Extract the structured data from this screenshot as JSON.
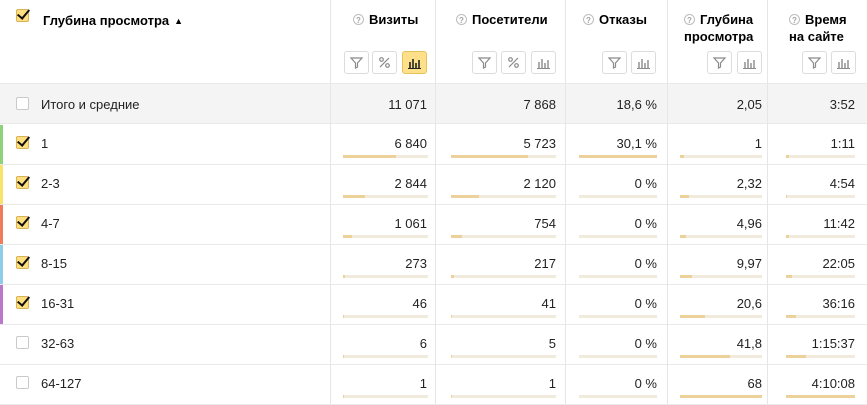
{
  "table": {
    "first_col_title": "Глубина просмотра",
    "sort_arrow": "▲",
    "columns": [
      {
        "key": "visits",
        "title_lines": [
          "Визиты"
        ]
      },
      {
        "key": "visitors",
        "title_lines": [
          "Посетители"
        ]
      },
      {
        "key": "bounces",
        "title_lines": [
          "Отказы"
        ]
      },
      {
        "key": "depth",
        "title_lines": [
          "Глубина",
          "просмотра"
        ]
      },
      {
        "key": "time",
        "title_lines": [
          "Время",
          "на сайте"
        ]
      }
    ],
    "total": {
      "label": "Итого и средние",
      "values": [
        "11 071",
        "7 868",
        "18,6 %",
        "2,05",
        "3:52"
      ]
    },
    "rows": [
      {
        "label": "1",
        "checked": true,
        "color": "#8fd27a",
        "values": [
          "6 840",
          "5 723",
          "30,1 %",
          "1",
          "1:11"
        ],
        "fill": [
          0.62,
          0.73,
          1.0,
          0.05,
          0.05
        ]
      },
      {
        "label": "2-3",
        "checked": true,
        "color": "#f7e36a",
        "values": [
          "2 844",
          "2 120",
          "0 %",
          "2,32",
          "4:54"
        ],
        "fill": [
          0.26,
          0.27,
          0,
          0.11,
          0.02
        ]
      },
      {
        "label": "4-7",
        "checked": true,
        "color": "#f07a5a",
        "values": [
          "1 061",
          "754",
          "0 %",
          "4,96",
          "11:42"
        ],
        "fill": [
          0.1,
          0.1,
          0,
          0.07,
          0.05
        ]
      },
      {
        "label": "8-15",
        "checked": true,
        "color": "#8ecde8",
        "values": [
          "273",
          "217",
          "0 %",
          "9,97",
          "22:05"
        ],
        "fill": [
          0.02,
          0.03,
          0,
          0.15,
          0.09
        ]
      },
      {
        "label": "16-31",
        "checked": true,
        "color": "#b978c9",
        "values": [
          "46",
          "41",
          "0 %",
          "20,6",
          "36:16"
        ],
        "fill": [
          0.004,
          0.005,
          0,
          0.3,
          0.14
        ]
      },
      {
        "label": "32-63",
        "checked": false,
        "color": "",
        "values": [
          "6",
          "5",
          "0 %",
          "41,8",
          "1:15:37"
        ],
        "fill": [
          0.001,
          0.001,
          0,
          0.61,
          0.29
        ]
      },
      {
        "label": "64-127",
        "checked": false,
        "color": "",
        "values": [
          "1",
          "1",
          "0 %",
          "68",
          "4:10:08"
        ],
        "fill": [
          0.0002,
          0.0002,
          0,
          1.0,
          1.0
        ]
      }
    ]
  }
}
